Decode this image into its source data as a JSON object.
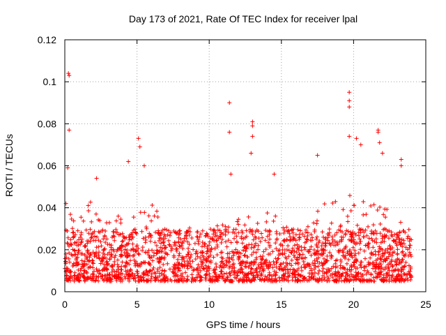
{
  "chart_data": {
    "type": "scatter",
    "title": "Day 173 of 2021, Rate Of TEC Index for receiver lpal",
    "xlabel": "GPS time / hours",
    "ylabel": "ROTI / TECUs",
    "xlim": [
      0,
      25
    ],
    "ylim": [
      0,
      0.12
    ],
    "xticks": [
      0,
      5,
      10,
      15,
      20,
      25
    ],
    "xtick_labels": [
      "0",
      "5",
      "10",
      "15",
      "20",
      "25"
    ],
    "yticks": [
      0,
      0.02,
      0.04,
      0.06,
      0.08,
      0.1,
      0.12
    ],
    "ytick_labels": [
      "0",
      "0.02",
      "0.04",
      "0.06",
      "0.08",
      "0.1",
      "0.12"
    ],
    "grid": true,
    "marker": "+",
    "color": "#ff0000",
    "series": [
      {
        "name": "ROTI",
        "x_range_hours": [
          0,
          24
        ],
        "bulk_range": [
          0.005,
          0.03
        ],
        "notable_points": [
          {
            "x": 0.25,
            "y": 0.104
          },
          {
            "x": 0.3,
            "y": 0.103
          },
          {
            "x": 0.3,
            "y": 0.077
          },
          {
            "x": 0.2,
            "y": 0.059
          },
          {
            "x": 2.2,
            "y": 0.054
          },
          {
            "x": 4.4,
            "y": 0.062
          },
          {
            "x": 5.1,
            "y": 0.073
          },
          {
            "x": 5.2,
            "y": 0.069
          },
          {
            "x": 5.5,
            "y": 0.06
          },
          {
            "x": 11.4,
            "y": 0.09
          },
          {
            "x": 11.4,
            "y": 0.076
          },
          {
            "x": 11.5,
            "y": 0.056
          },
          {
            "x": 13.0,
            "y": 0.081
          },
          {
            "x": 13.0,
            "y": 0.079
          },
          {
            "x": 13.0,
            "y": 0.074
          },
          {
            "x": 12.9,
            "y": 0.066
          },
          {
            "x": 14.5,
            "y": 0.056
          },
          {
            "x": 17.5,
            "y": 0.065
          },
          {
            "x": 19.7,
            "y": 0.095
          },
          {
            "x": 19.7,
            "y": 0.091
          },
          {
            "x": 19.7,
            "y": 0.088
          },
          {
            "x": 19.7,
            "y": 0.074
          },
          {
            "x": 20.2,
            "y": 0.073
          },
          {
            "x": 20.5,
            "y": 0.07
          },
          {
            "x": 21.7,
            "y": 0.077
          },
          {
            "x": 21.7,
            "y": 0.076
          },
          {
            "x": 21.8,
            "y": 0.071
          },
          {
            "x": 22.0,
            "y": 0.066
          },
          {
            "x": 23.3,
            "y": 0.063
          },
          {
            "x": 23.3,
            "y": 0.06
          }
        ],
        "activity_envelope": [
          {
            "x": 0,
            "y": 0.045
          },
          {
            "x": 1,
            "y": 0.035
          },
          {
            "x": 2,
            "y": 0.045
          },
          {
            "x": 3,
            "y": 0.04
          },
          {
            "x": 4,
            "y": 0.035
          },
          {
            "x": 5,
            "y": 0.045
          },
          {
            "x": 6,
            "y": 0.042
          },
          {
            "x": 7,
            "y": 0.035
          },
          {
            "x": 8,
            "y": 0.033
          },
          {
            "x": 9,
            "y": 0.03
          },
          {
            "x": 10,
            "y": 0.032
          },
          {
            "x": 11,
            "y": 0.034
          },
          {
            "x": 12,
            "y": 0.038
          },
          {
            "x": 13,
            "y": 0.04
          },
          {
            "x": 14,
            "y": 0.038
          },
          {
            "x": 15,
            "y": 0.035
          },
          {
            "x": 16,
            "y": 0.03
          },
          {
            "x": 17,
            "y": 0.04
          },
          {
            "x": 18,
            "y": 0.045
          },
          {
            "x": 19,
            "y": 0.045
          },
          {
            "x": 20,
            "y": 0.05
          },
          {
            "x": 21,
            "y": 0.045
          },
          {
            "x": 22,
            "y": 0.04
          },
          {
            "x": 23,
            "y": 0.038
          },
          {
            "x": 24,
            "y": 0.035
          }
        ],
        "point_count": 2200
      }
    ]
  }
}
